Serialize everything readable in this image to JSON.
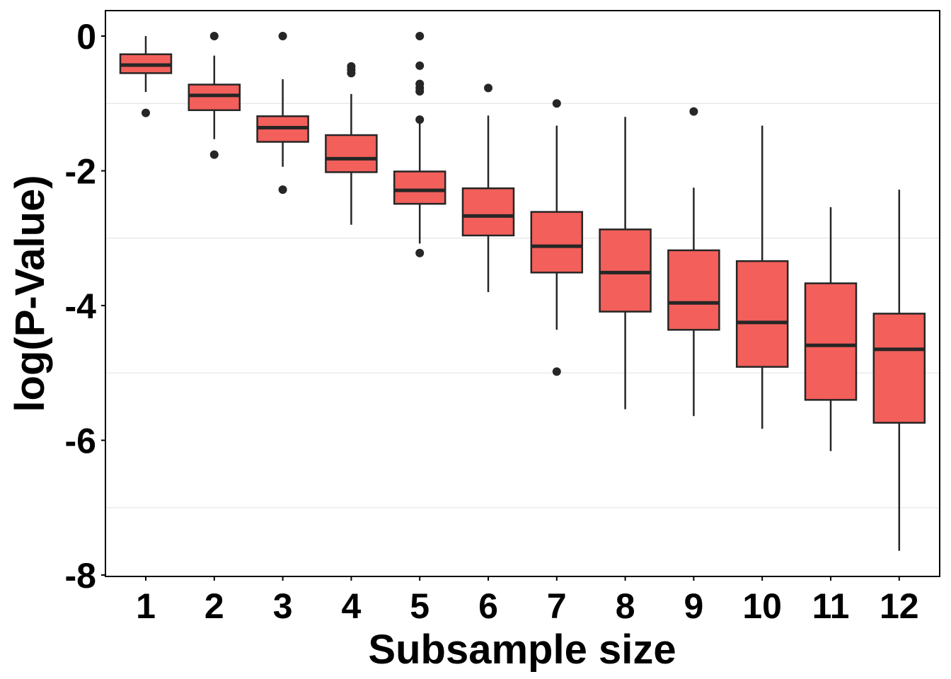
{
  "chart_data": {
    "type": "box",
    "title": "",
    "xlabel": "Subsample size",
    "ylabel": "log(P-Value)",
    "ylim": [
      -8,
      0
    ],
    "yticks": [
      "0",
      "-2",
      "-4",
      "-6",
      "-8"
    ],
    "ytick_values": [
      0,
      -2,
      -4,
      -6,
      -8
    ],
    "minor_grid": [
      -1,
      -3,
      -5,
      -7
    ],
    "categories": [
      "1",
      "2",
      "3",
      "4",
      "5",
      "6",
      "7",
      "8",
      "9",
      "10",
      "11",
      "12"
    ],
    "fill_color": "#F35F5A",
    "line_color": "#262626",
    "boxes": [
      {
        "category": "1",
        "whisker_high": 0.0,
        "q3": -0.27,
        "median": -0.43,
        "q1": -0.55,
        "whisker_low": -0.83,
        "outliers": [
          -1.14
        ]
      },
      {
        "category": "2",
        "whisker_high": -0.29,
        "q3": -0.72,
        "median": -0.88,
        "q1": -1.1,
        "whisker_low": -1.53,
        "outliers": [
          0.0,
          -1.76
        ]
      },
      {
        "category": "3",
        "whisker_high": -0.64,
        "q3": -1.19,
        "median": -1.36,
        "q1": -1.57,
        "whisker_low": -1.94,
        "outliers": [
          0.0,
          -2.28
        ]
      },
      {
        "category": "4",
        "whisker_high": -0.86,
        "q3": -1.47,
        "median": -1.82,
        "q1": -2.02,
        "whisker_low": -2.8,
        "outliers": [
          -0.45,
          -0.5,
          -0.55
        ]
      },
      {
        "category": "5",
        "whisker_high": -1.23,
        "q3": -2.01,
        "median": -2.29,
        "q1": -2.49,
        "whisker_low": -3.08,
        "outliers": [
          0.0,
          -0.44,
          -0.71,
          -0.77,
          -0.82,
          -1.24,
          -3.22
        ]
      },
      {
        "category": "6",
        "whisker_high": -1.18,
        "q3": -2.26,
        "median": -2.67,
        "q1": -2.96,
        "whisker_low": -3.8,
        "outliers": [
          -0.77
        ]
      },
      {
        "category": "7",
        "whisker_high": -1.33,
        "q3": -2.61,
        "median": -3.12,
        "q1": -3.51,
        "whisker_low": -4.36,
        "outliers": [
          -1.0,
          -4.98
        ]
      },
      {
        "category": "8",
        "whisker_high": -1.2,
        "q3": -2.87,
        "median": -3.51,
        "q1": -4.09,
        "whisker_low": -5.54,
        "outliers": []
      },
      {
        "category": "9",
        "whisker_high": -2.25,
        "q3": -3.18,
        "median": -3.96,
        "q1": -4.36,
        "whisker_low": -5.64,
        "outliers": [
          -1.12
        ]
      },
      {
        "category": "10",
        "whisker_high": -1.33,
        "q3": -3.34,
        "median": -4.25,
        "q1": -4.91,
        "whisker_low": -5.83,
        "outliers": []
      },
      {
        "category": "11",
        "whisker_high": -2.54,
        "q3": -3.67,
        "median": -4.59,
        "q1": -5.4,
        "whisker_low": -6.16,
        "outliers": []
      },
      {
        "category": "12",
        "whisker_high": -2.28,
        "q3": -4.12,
        "median": -4.65,
        "q1": -5.74,
        "whisker_low": -7.64,
        "outliers": []
      }
    ]
  }
}
